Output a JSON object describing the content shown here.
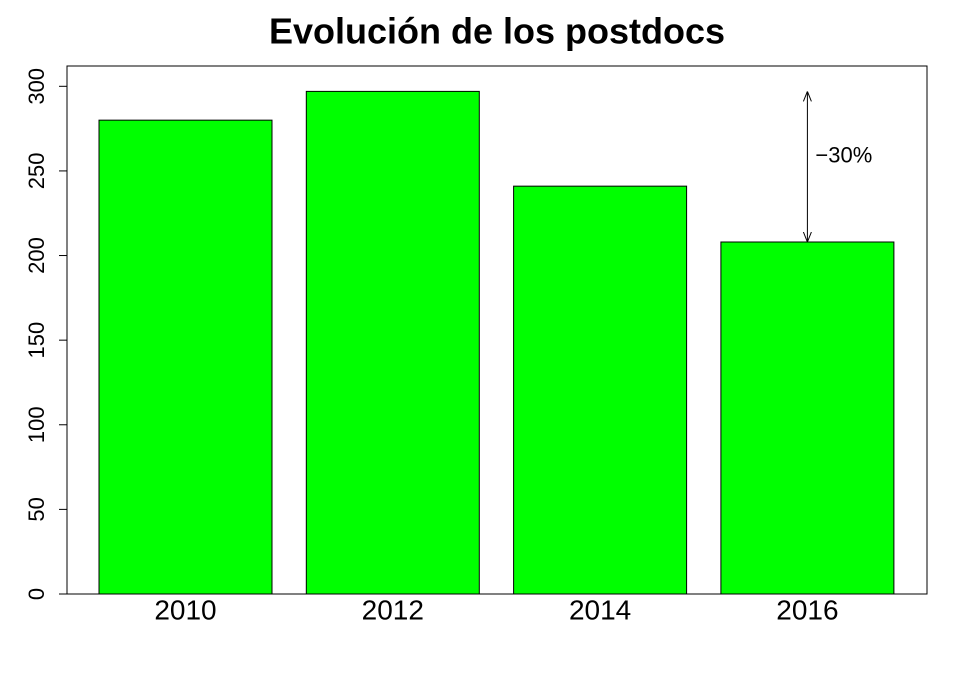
{
  "chart_data": {
    "type": "bar",
    "title": "Evolución de los postdocs",
    "categories": [
      "2010",
      "2012",
      "2014",
      "2016"
    ],
    "values": [
      280,
      297,
      241,
      208
    ],
    "color": "#00ff00",
    "ylim": [
      0,
      312
    ],
    "yticks": [
      0,
      50,
      100,
      150,
      200,
      250,
      300
    ],
    "grid": false,
    "annotation": "−30%"
  }
}
